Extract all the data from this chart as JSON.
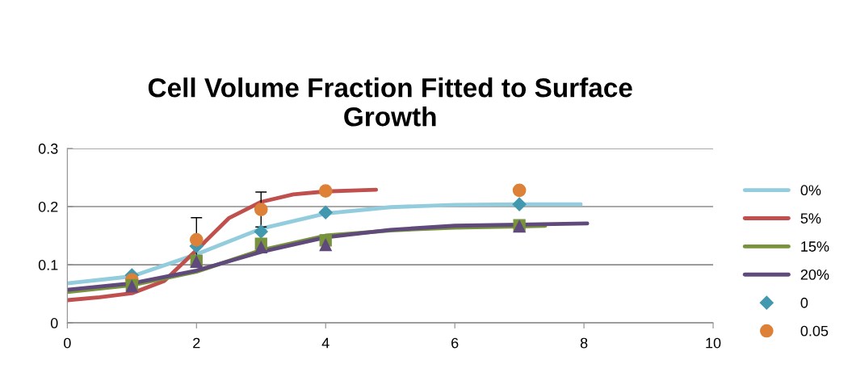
{
  "chart_data": {
    "type": "line",
    "title": "Cell Volume Fraction Fitted to Surface\nGrowth",
    "xlim": [
      0,
      10
    ],
    "xticks": [
      0,
      2,
      4,
      6,
      8,
      10
    ],
    "ylim": [
      0,
      0.3
    ],
    "yticks": [
      0,
      0.1,
      0.2,
      0.3
    ],
    "grid": "y",
    "legend": "right",
    "series": [
      {
        "name": "0%",
        "color": "#93cddd",
        "marker": "none",
        "x": [
          0,
          1,
          2,
          3,
          4,
          5,
          6,
          7,
          7.95
        ],
        "values": [
          0.068,
          0.08,
          0.118,
          0.162,
          0.188,
          0.199,
          0.203,
          0.204,
          0.204
        ]
      },
      {
        "name": "5%",
        "color": "#c0504d",
        "marker": "none",
        "x": [
          0,
          0.5,
          1,
          1.5,
          2,
          2.5,
          3,
          3.5,
          4,
          4.5,
          4.78
        ],
        "values": [
          0.039,
          0.044,
          0.051,
          0.072,
          0.125,
          0.18,
          0.208,
          0.221,
          0.226,
          0.228,
          0.229
        ]
      },
      {
        "name": "15%",
        "color": "#77933c",
        "marker": "none",
        "x": [
          0,
          1,
          2,
          3,
          4,
          5,
          6,
          7,
          7.4
        ],
        "values": [
          0.053,
          0.065,
          0.088,
          0.125,
          0.15,
          0.159,
          0.164,
          0.166,
          0.167
        ]
      },
      {
        "name": "20%",
        "color": "#604a7b",
        "marker": "none",
        "x": [
          0,
          1,
          2,
          3,
          4,
          5,
          6,
          7,
          8.05
        ],
        "values": [
          0.057,
          0.068,
          0.09,
          0.122,
          0.147,
          0.16,
          0.167,
          0.169,
          0.171
        ]
      },
      {
        "name": "0",
        "type": "scatter",
        "color": "#4198af",
        "marker": "diamond",
        "x": [
          1,
          2,
          3,
          4,
          7
        ],
        "values": [
          0.082,
          0.132,
          0.157,
          0.19,
          0.204
        ]
      },
      {
        "name": "0.05",
        "type": "scatter",
        "color": "#dd8138",
        "marker": "circle",
        "x": [
          1,
          2,
          3,
          4,
          7
        ],
        "values": [
          0.074,
          0.143,
          0.195,
          0.227,
          0.228
        ],
        "errors": [
          null,
          0.038,
          0.03,
          null,
          null
        ]
      },
      {
        "type": "scatter",
        "color": "#77933c",
        "marker": "square",
        "x": [
          1,
          2,
          3,
          4,
          7
        ],
        "values": [
          0.065,
          0.107,
          0.136,
          0.142,
          0.168
        ]
      },
      {
        "type": "scatter",
        "color": "#604a7b",
        "marker": "triangle",
        "x": [
          1,
          2,
          3,
          4,
          7
        ],
        "values": [
          0.063,
          0.105,
          0.13,
          0.134,
          0.166
        ]
      }
    ]
  }
}
